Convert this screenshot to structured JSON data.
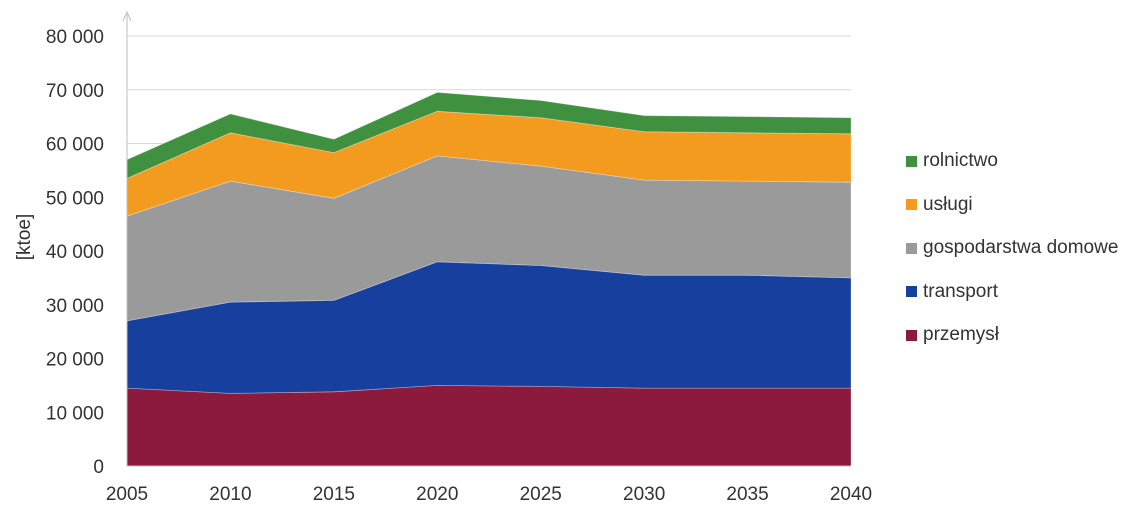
{
  "chart_data": {
    "type": "area",
    "stacked": true,
    "x": [
      2005,
      2010,
      2015,
      2020,
      2025,
      2030,
      2035,
      2040
    ],
    "ylabel": "[ktoe]",
    "ylim": [
      0,
      80000
    ],
    "yticks": [
      "0",
      "10 000",
      "20 000",
      "30 000",
      "40 000",
      "50 000",
      "60 000",
      "70 000",
      "80 000"
    ],
    "xticks": [
      "2005",
      "2010",
      "2015",
      "2020",
      "2025",
      "2030",
      "2035",
      "2040"
    ],
    "grid": true,
    "legend_position": "right",
    "series": [
      {
        "name": "przemysł",
        "color": "#8b1a3c",
        "values": [
          14500,
          13500,
          13800,
          15000,
          14800,
          14500,
          14500,
          14500
        ]
      },
      {
        "name": "transport",
        "color": "#173f9e",
        "values": [
          12500,
          17000,
          17000,
          23000,
          22500,
          21000,
          21000,
          20500
        ]
      },
      {
        "name": "gospodarstwa domowe",
        "color": "#9a9a9a",
        "values": [
          19500,
          22500,
          19000,
          19700,
          18500,
          17700,
          17500,
          17800
        ]
      },
      {
        "name": "usługi",
        "color": "#f39b1f",
        "values": [
          7000,
          9000,
          8500,
          8300,
          9000,
          9000,
          9000,
          9000
        ]
      },
      {
        "name": "rolnictwo",
        "color": "#3f9140",
        "values": [
          3500,
          3500,
          2500,
          3500,
          3200,
          3000,
          3000,
          3000
        ]
      }
    ]
  }
}
